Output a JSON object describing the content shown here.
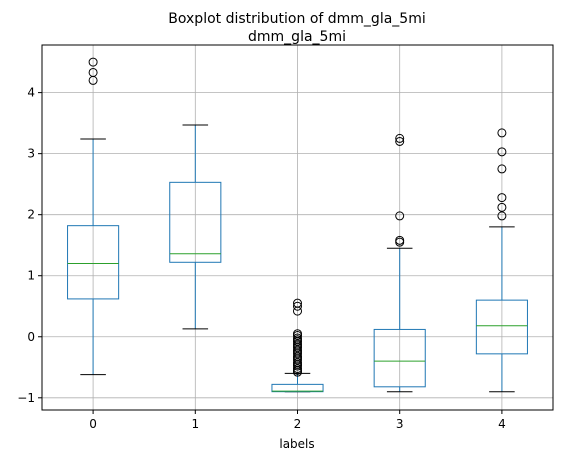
{
  "chart_data": {
    "type": "boxplot",
    "title": "Boxplot distribution of dmm_gla_5mi",
    "subtitle": "dmm_gla_5mi",
    "xlabel": "labels",
    "ylabel": "",
    "categories": [
      "0",
      "1",
      "2",
      "3",
      "4"
    ],
    "ylim": [
      -1.2,
      4.78
    ],
    "yticks": [
      -1,
      0,
      1,
      2,
      3,
      4
    ],
    "grid": true,
    "colors": {
      "box": "#1f77b4",
      "median": "#2ca02c",
      "whisker": "#1f77b4",
      "cap": "#000000",
      "flier": "#000000",
      "grid": "#b0b0b0"
    },
    "boxes": [
      {
        "label": "0",
        "whislo": -0.62,
        "q1": 0.62,
        "med": 1.2,
        "q3": 1.82,
        "whishi": 3.24,
        "fliers": [
          4.2,
          4.33,
          4.5
        ]
      },
      {
        "label": "1",
        "whislo": 0.13,
        "q1": 1.22,
        "med": 1.36,
        "q3": 2.53,
        "whishi": 3.47,
        "fliers": []
      },
      {
        "label": "2",
        "whislo": -0.9,
        "q1": -0.9,
        "med": -0.89,
        "q3": -0.78,
        "whishi": -0.6,
        "fliers": [
          -0.58,
          -0.55,
          -0.52,
          -0.48,
          -0.45,
          -0.42,
          -0.38,
          -0.35,
          -0.32,
          -0.28,
          -0.25,
          -0.22,
          -0.18,
          -0.15,
          -0.12,
          -0.08,
          -0.05,
          -0.02,
          0.02,
          0.05,
          0.42,
          0.5,
          0.55
        ]
      },
      {
        "label": "3",
        "whislo": -0.9,
        "q1": -0.82,
        "med": -0.4,
        "q3": 0.12,
        "whishi": 1.45,
        "fliers": [
          1.55,
          1.58,
          1.98,
          3.2,
          3.25
        ]
      },
      {
        "label": "4",
        "whislo": -0.9,
        "q1": -0.28,
        "med": 0.18,
        "q3": 0.6,
        "whishi": 1.8,
        "fliers": [
          1.98,
          2.12,
          2.28,
          2.75,
          3.03,
          3.34
        ]
      }
    ]
  }
}
